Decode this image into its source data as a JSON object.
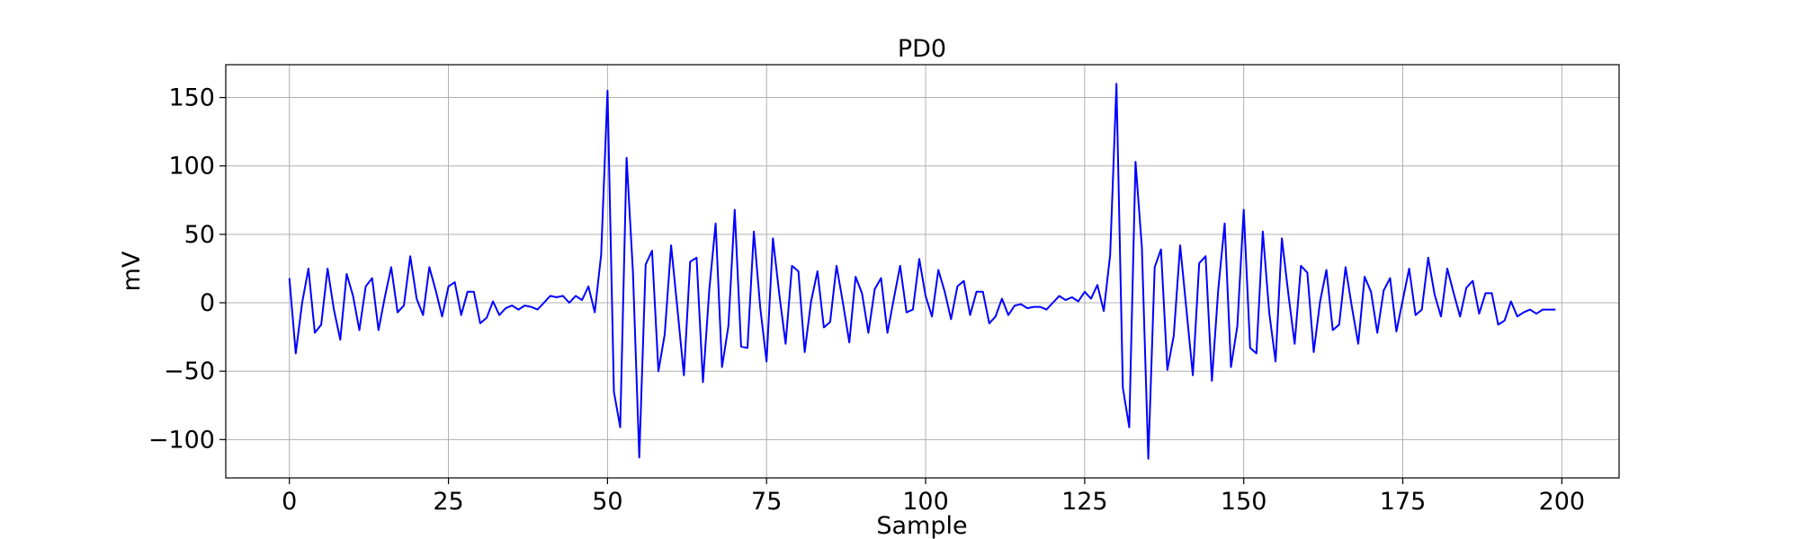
{
  "chart_data": {
    "type": "line",
    "title": "PD0",
    "xlabel": "Sample",
    "ylabel": "mV",
    "xlim": [
      -10,
      209
    ],
    "ylim": [
      -128,
      174
    ],
    "xticks": [
      0,
      25,
      50,
      75,
      100,
      125,
      150,
      175,
      200
    ],
    "yticks": [
      -100,
      -50,
      0,
      50,
      100,
      150
    ],
    "ytick_labels": [
      "−100",
      "−50",
      "0",
      "50",
      "100",
      "150"
    ],
    "grid": true,
    "line_color": "#0000ff",
    "series": [
      {
        "name": "",
        "x": [
          0,
          1,
          2,
          3,
          4,
          5,
          6,
          7,
          8,
          9,
          10,
          11,
          12,
          13,
          14,
          15,
          16,
          17,
          18,
          19,
          20,
          21,
          22,
          23,
          24,
          25,
          26,
          27,
          28,
          29,
          30,
          31,
          32,
          33,
          34,
          35,
          36,
          37,
          38,
          39,
          40,
          41,
          42,
          43,
          44,
          45,
          46,
          47,
          48,
          49,
          50,
          51,
          52,
          53,
          54,
          55,
          56,
          57,
          58,
          59,
          60,
          61,
          62,
          63,
          64,
          65,
          66,
          67,
          68,
          69,
          70,
          71,
          72,
          73,
          74,
          75,
          76,
          77,
          78,
          79,
          80,
          81,
          82,
          83,
          84,
          85,
          86,
          87,
          88,
          89,
          90,
          91,
          92,
          93,
          94,
          95,
          96,
          97,
          98,
          99,
          100,
          101,
          102,
          103,
          104,
          105,
          106,
          107,
          108,
          109,
          110,
          111,
          112,
          113,
          114,
          115,
          116,
          117,
          118,
          119,
          120,
          121,
          122,
          123,
          124,
          125,
          126,
          127,
          128,
          129,
          130,
          131,
          132,
          133,
          134,
          135,
          136,
          137,
          138,
          139,
          140,
          141,
          142,
          143,
          144,
          145,
          146,
          147,
          148,
          149,
          150,
          151,
          152,
          153,
          154,
          155,
          156,
          157,
          158,
          159,
          160,
          161,
          162,
          163,
          164,
          165,
          166,
          167,
          168,
          169,
          170,
          171,
          172,
          173,
          174,
          175,
          176,
          177,
          178,
          179,
          180,
          181,
          182,
          183,
          184,
          185,
          186,
          187,
          188,
          189,
          190,
          191,
          192,
          193,
          194,
          195,
          196,
          197,
          198,
          199
        ],
        "values": [
          18,
          -37,
          0,
          25,
          -22,
          -16,
          25,
          -5,
          -27,
          21,
          5,
          -20,
          12,
          18,
          -20,
          4,
          26,
          -7,
          -2,
          34,
          3,
          -9,
          26,
          9,
          -10,
          12,
          15,
          -9,
          8,
          8,
          -15,
          -11,
          1,
          -9,
          -4,
          -2,
          -5,
          -2,
          -3,
          -5,
          0,
          5,
          4,
          5,
          0,
          5,
          2,
          12,
          -7,
          35,
          155,
          -65,
          -91,
          106,
          22,
          -113,
          28,
          38,
          -50,
          -23,
          42,
          -5,
          -53,
          30,
          33,
          -58,
          10,
          58,
          -47,
          -17,
          68,
          -32,
          -33,
          52,
          -3,
          -43,
          47,
          6,
          -30,
          27,
          23,
          -36,
          1,
          23,
          -18,
          -14,
          27,
          0,
          -29,
          19,
          7,
          -22,
          10,
          18,
          -22,
          3,
          27,
          -7,
          -5,
          32,
          5,
          -10,
          24,
          8,
          -12,
          12,
          16,
          -9,
          8,
          8,
          -15,
          -10,
          3,
          -9,
          -2,
          -1,
          -4,
          -3,
          -3,
          -5,
          0,
          5,
          2,
          4,
          1,
          8,
          3,
          13,
          -6,
          35,
          160,
          -62,
          -91,
          103,
          40,
          -114,
          26,
          39,
          -49,
          -24,
          42,
          -5,
          -53,
          29,
          34,
          -57,
          10,
          58,
          -47,
          -17,
          68,
          -33,
          -37,
          52,
          -7,
          -43,
          47,
          7,
          -30,
          27,
          22,
          -36,
          1,
          24,
          -20,
          -16,
          26,
          -3,
          -30,
          19,
          8,
          -22,
          9,
          18,
          -21,
          2,
          25,
          -9,
          -5,
          33,
          6,
          -10,
          25,
          7,
          -10,
          11,
          16,
          -8,
          7,
          7,
          -16,
          -13,
          1,
          -10,
          -7,
          -5,
          -8,
          -5,
          -5,
          -5
        ]
      }
    ]
  }
}
